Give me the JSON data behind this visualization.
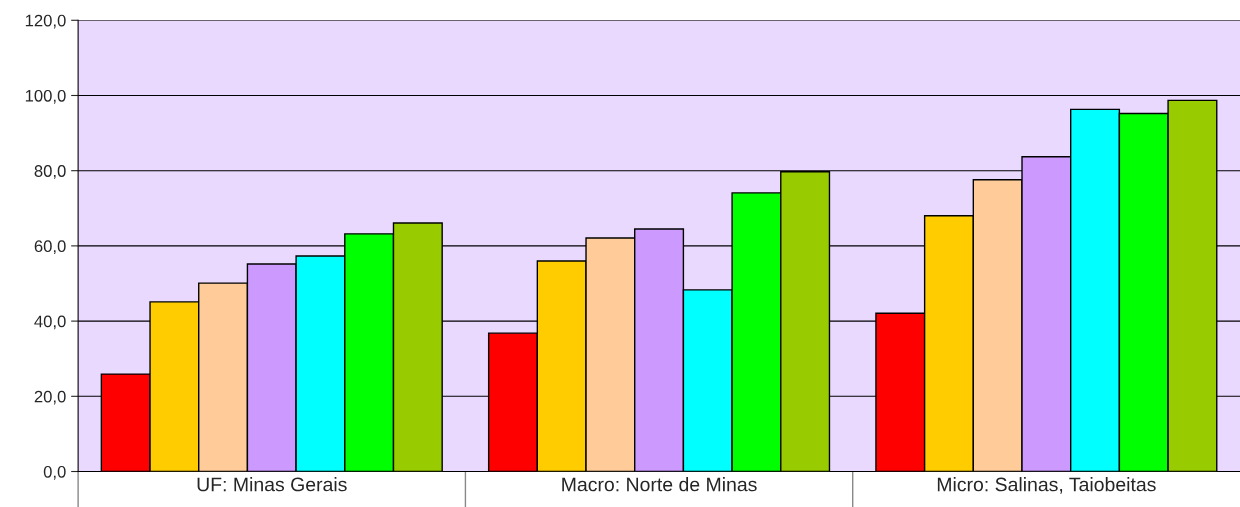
{
  "chart_data": {
    "type": "bar",
    "categories": [
      "UF: Minas Gerais",
      "Macro: Norte de Minas",
      "Micro: Salinas, Taiobeitas"
    ],
    "series": [
      {
        "color": "#ff0000",
        "values": [
          25.9,
          36.8,
          42.1
        ]
      },
      {
        "color": "#ffcc00",
        "values": [
          45.1,
          56.0,
          68.0
        ]
      },
      {
        "color": "#ffcc99",
        "values": [
          50.1,
          62.1,
          77.6
        ]
      },
      {
        "color": "#cc99ff",
        "values": [
          55.2,
          64.5,
          83.7
        ]
      },
      {
        "color": "#00ffff",
        "values": [
          57.3,
          48.3,
          96.3
        ]
      },
      {
        "color": "#00ff00",
        "values": [
          63.2,
          74.1,
          95.2
        ]
      },
      {
        "color": "#99cc00",
        "values": [
          66.1,
          79.7,
          98.7
        ]
      }
    ],
    "ylim": [
      0,
      120
    ],
    "yticks": [
      {
        "value": 0,
        "label": "0,0"
      },
      {
        "value": 20,
        "label": "20,0"
      },
      {
        "value": 40,
        "label": "40,0"
      },
      {
        "value": 60,
        "label": "60,0"
      },
      {
        "value": 80,
        "label": "80,0"
      },
      {
        "value": 100,
        "label": "100,0"
      },
      {
        "value": 120,
        "label": "120,0"
      }
    ],
    "grid": "y",
    "legend": false
  }
}
